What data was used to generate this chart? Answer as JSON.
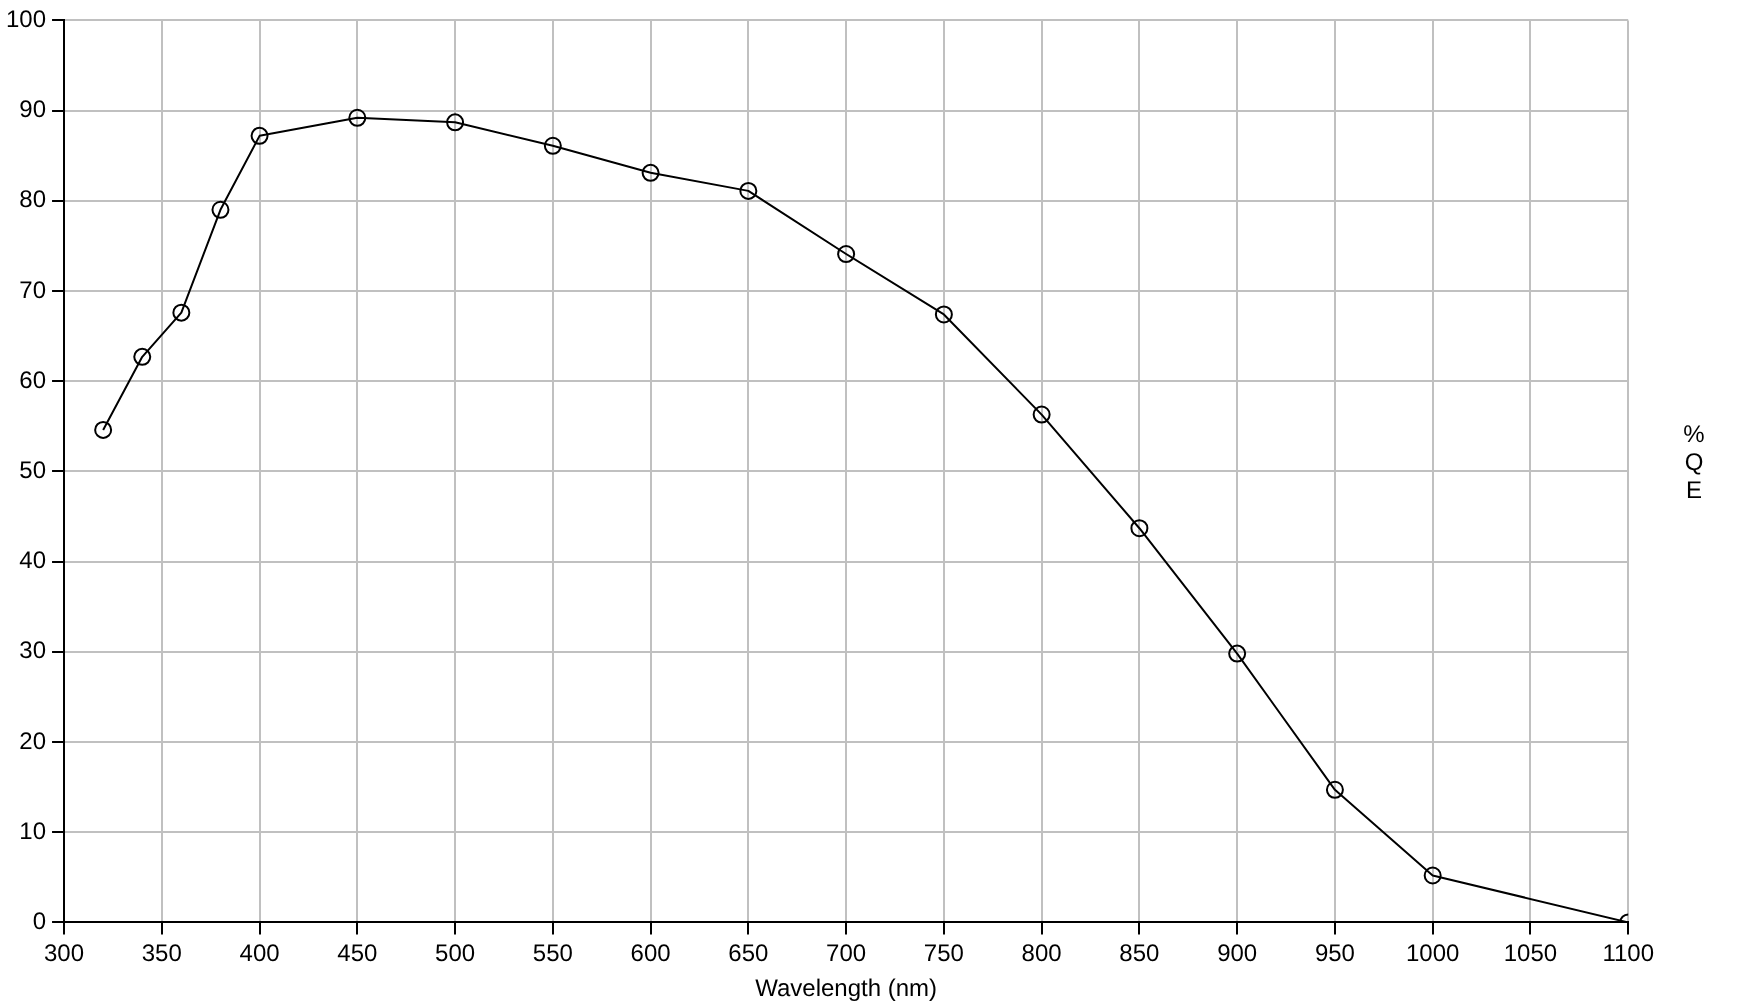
{
  "chart_data": {
    "type": "line",
    "xlabel": "Wavelength (nm)",
    "ylabel": "%QE",
    "x": [
      320,
      340,
      360,
      380,
      400,
      450,
      500,
      550,
      600,
      650,
      700,
      750,
      800,
      850,
      900,
      950,
      1000,
      1100
    ],
    "series": [
      {
        "color": "#000000",
        "values": [
          54.6,
          62.7,
          67.6,
          79.0,
          87.2,
          89.2,
          88.7,
          86.1,
          83.1,
          81.1,
          74.1,
          67.4,
          56.3,
          43.7,
          29.8,
          14.7,
          5.2,
          0
        ]
      }
    ],
    "xlim": [
      300,
      1100
    ],
    "xticks": [
      300,
      350,
      400,
      450,
      500,
      550,
      600,
      650,
      700,
      750,
      800,
      850,
      900,
      950,
      1000,
      1050,
      1100
    ],
    "ylim": [
      0,
      100
    ],
    "yticks": [
      0,
      10,
      20,
      30,
      40,
      50,
      60,
      70,
      80,
      90,
      100
    ],
    "grid": true,
    "legend": false,
    "marker": "circle",
    "line_style": "solid"
  }
}
